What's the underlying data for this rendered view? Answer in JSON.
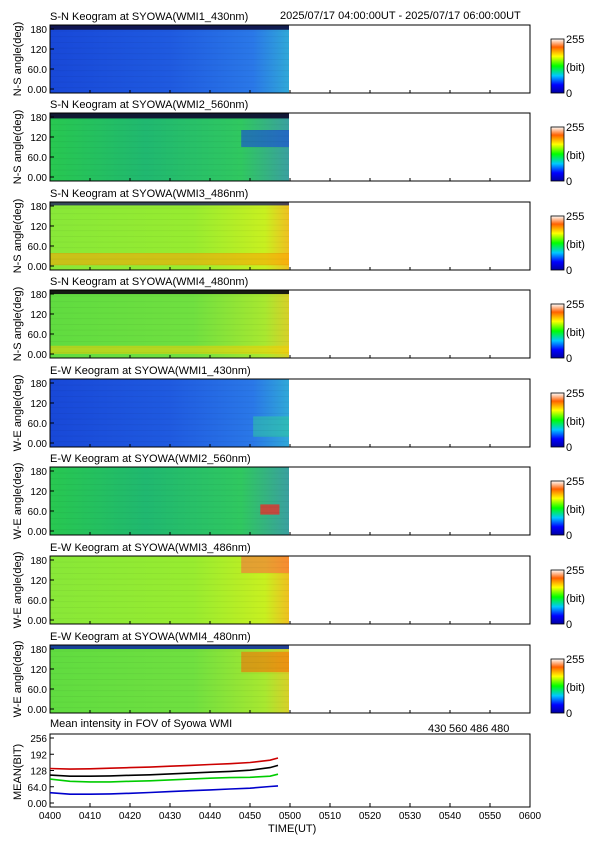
{
  "header": {
    "time_range": "2025/07/17 04:00:00UT - 2025/07/17 06:00:00UT"
  },
  "colorbar": {
    "max_label": "255",
    "unit_label": "(bit)",
    "min_label": "0"
  },
  "keograms": [
    {
      "title": "S-N Keogram at SYOWA(WMI1_430nm)",
      "ylabel": "N-S angle(deg)",
      "channel": "430",
      "direction": "S-N"
    },
    {
      "title": "S-N Keogram at SYOWA(WMI2_560nm)",
      "ylabel": "N-S angle(deg)",
      "channel": "560",
      "direction": "S-N"
    },
    {
      "title": "S-N Keogram at SYOWA(WMI3_486nm)",
      "ylabel": "N-S angle(deg)",
      "channel": "486",
      "direction": "S-N"
    },
    {
      "title": "S-N Keogram at SYOWA(WMI4_480nm)",
      "ylabel": "N-S angle(deg)",
      "channel": "480",
      "direction": "S-N"
    },
    {
      "title": "E-W Keogram at SYOWA(WMI1_430nm)",
      "ylabel": "W-E angle(deg)",
      "channel": "430",
      "direction": "E-W"
    },
    {
      "title": "E-W Keogram at SYOWA(WMI2_560nm)",
      "ylabel": "W-E angle(deg)",
      "channel": "560",
      "direction": "E-W"
    },
    {
      "title": "E-W Keogram at SYOWA(WMI3_486nm)",
      "ylabel": "W-E angle(deg)",
      "channel": "486",
      "direction": "E-W"
    },
    {
      "title": "E-W Keogram at SYOWA(WMI4_480nm)",
      "ylabel": "W-E angle(deg)",
      "channel": "480",
      "direction": "E-W"
    }
  ],
  "keogram_yticks": [
    "180",
    "120",
    "60.0",
    "0.00"
  ],
  "chart_data": {
    "type": "line",
    "title": "Mean intensity in FOV of Syowa WMI",
    "xlabel": "TIME(UT)",
    "ylabel": "MEAN(BIT)",
    "xlim": [
      0,
      120
    ],
    "ylim": [
      0,
      256
    ],
    "xticks": [
      "0400",
      "0410",
      "0420",
      "0430",
      "0440",
      "0450",
      "0500",
      "0510",
      "0520",
      "0530",
      "0540",
      "0550",
      "0600"
    ],
    "yticks": [
      "256",
      "192",
      "128",
      "64.0",
      "0.00"
    ],
    "x": [
      0,
      5,
      10,
      15,
      20,
      25,
      30,
      35,
      40,
      45,
      50,
      55,
      57
    ],
    "series": [
      {
        "name": "430",
        "color": "#0000cc",
        "values": [
          50,
          45,
          45,
          46,
          48,
          51,
          54,
          57,
          60,
          63,
          66,
          72,
          74
        ]
      },
      {
        "name": "560",
        "color": "#00cc00",
        "values": [
          98,
          90,
          88,
          88,
          90,
          92,
          95,
          98,
          101,
          103,
          104,
          108,
          115
        ]
      },
      {
        "name": "486",
        "color": "#cc0000",
        "values": [
          135,
          133,
          134,
          136,
          138,
          140,
          143,
          146,
          149,
          152,
          156,
          164,
          172
        ]
      },
      {
        "name": "480",
        "color": "#000000",
        "values": [
          112,
          108,
          108,
          109,
          111,
          113,
          116,
          119,
          122,
          125,
          129,
          138,
          146
        ]
      }
    ]
  }
}
